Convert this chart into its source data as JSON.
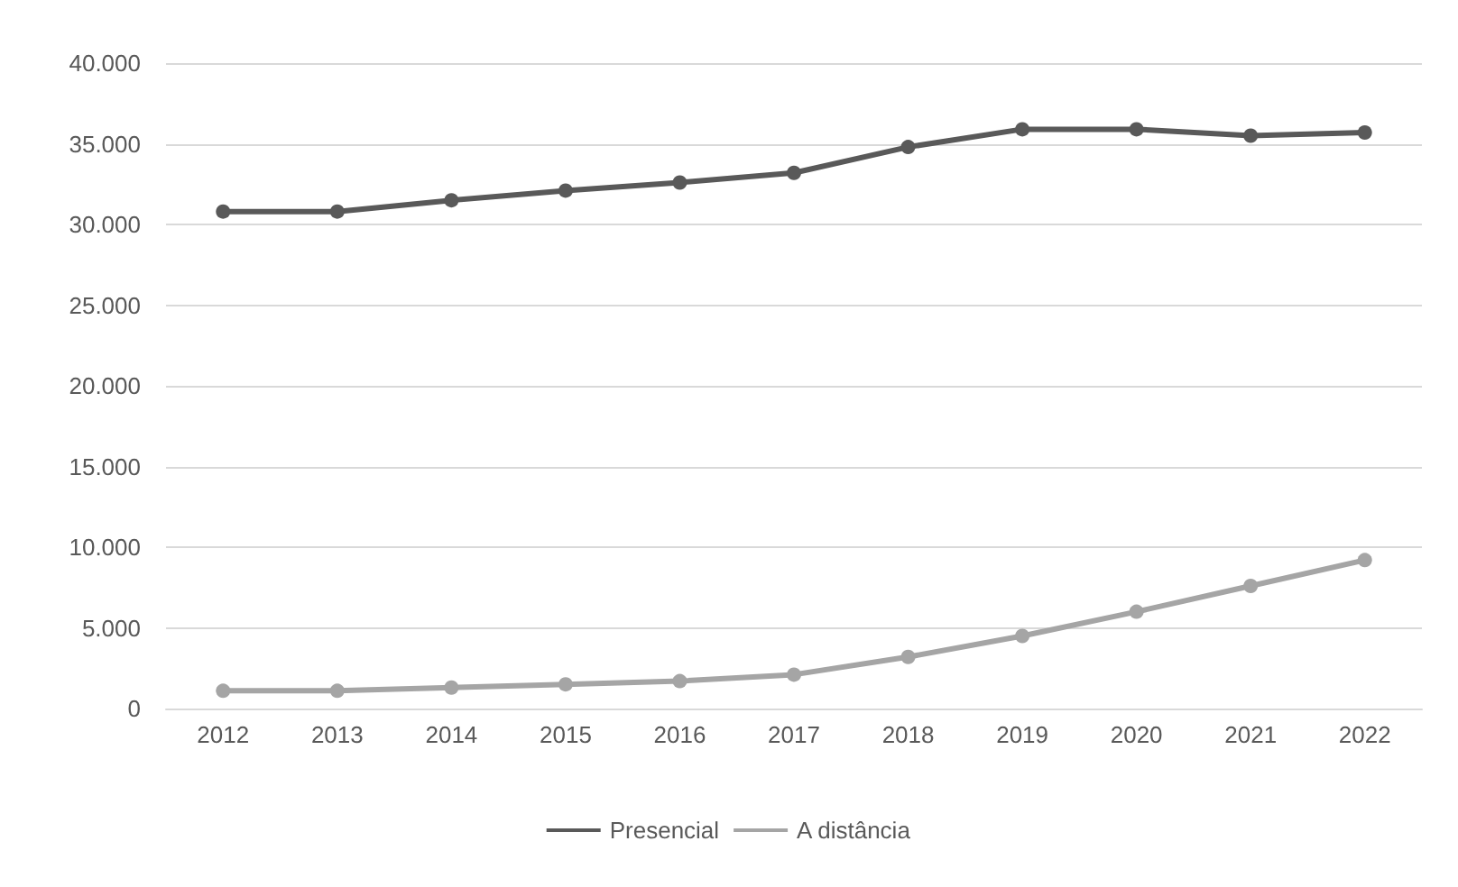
{
  "chart_data": {
    "type": "line",
    "categories": [
      "2012",
      "2013",
      "2014",
      "2015",
      "2016",
      "2017",
      "2018",
      "2019",
      "2020",
      "2021",
      "2022"
    ],
    "series": [
      {
        "name": "Presencial",
        "color": "#595959",
        "values": [
          30800,
          30800,
          31500,
          32100,
          32600,
          33200,
          34800,
          35900,
          35900,
          35500,
          35700
        ]
      },
      {
        "name": "A distância",
        "color": "#a5a5a5",
        "values": [
          1100,
          1100,
          1300,
          1500,
          1700,
          2100,
          3200,
          4500,
          6000,
          7600,
          9200
        ]
      }
    ],
    "ylim": [
      0,
      40000
    ],
    "yticks": [
      {
        "value": 0,
        "label": "0"
      },
      {
        "value": 5000,
        "label": "5.000"
      },
      {
        "value": 10000,
        "label": "10.000"
      },
      {
        "value": 15000,
        "label": "15.000"
      },
      {
        "value": 20000,
        "label": "20.000"
      },
      {
        "value": 25000,
        "label": "25.000"
      },
      {
        "value": 30000,
        "label": "30.000"
      },
      {
        "value": 35000,
        "label": "35.000"
      },
      {
        "value": 40000,
        "label": "40.000"
      }
    ],
    "grid": "y",
    "legend": "bottom",
    "marker": "circle",
    "line_style": "solid"
  }
}
